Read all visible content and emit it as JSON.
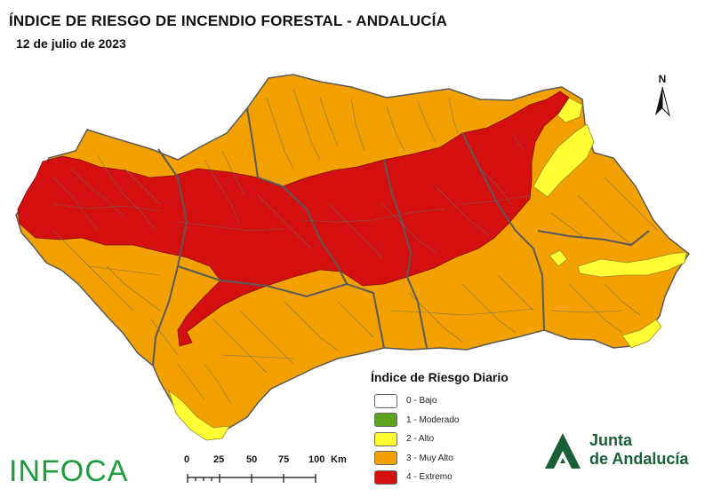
{
  "header": {
    "title": "ÍNDICE DE RIESGO DE INCENDIO FORESTAL - ANDALUCÍA",
    "date": "12 de julio de 2023"
  },
  "north_arrow": {
    "label": "N"
  },
  "legend": {
    "title": "Índice de Riesgo Diario",
    "items": [
      {
        "label": "0 - Bajo",
        "color": "#ffffff"
      },
      {
        "label": "1 - Moderado",
        "color": "#5da31c"
      },
      {
        "label": "2 - Alto",
        "color": "#ffff33"
      },
      {
        "label": "3 - Muy Alto",
        "color": "#f2a100"
      },
      {
        "label": "4 - Extremo",
        "color": "#d40f0f"
      }
    ]
  },
  "scale": {
    "ticks": [
      "0",
      "25",
      "50",
      "75",
      "100"
    ],
    "unit": "Km"
  },
  "logos": {
    "infoca": "INFOCA",
    "junta_line1": "Junta",
    "junta_line2": "de Andalucía"
  },
  "colors": {
    "muy_alto": "#f2a100",
    "extremo": "#d40f0f",
    "alto": "#ffff33",
    "border": "#5a5a5a",
    "infoca_green": "#1f9c3e",
    "junta_green": "#1a5e38"
  }
}
